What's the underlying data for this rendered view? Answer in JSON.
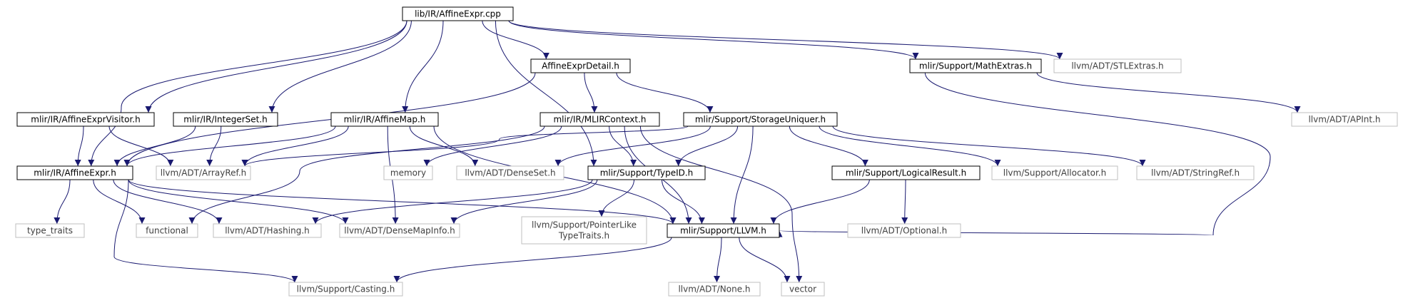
{
  "colors": {
    "edge": "#191970",
    "root_fill": "#bfbfbf",
    "internal_border": "#000000",
    "external_border": "#bfbfbf",
    "external_text": "#404040"
  },
  "nodes": [
    {
      "id": "n0",
      "kind": "root",
      "lines": [
        "lib/IR/AffineExpr.cpp"
      ]
    },
    {
      "id": "n1",
      "kind": "internal",
      "lines": [
        "mlir/IR/AffineExpr.h"
      ]
    },
    {
      "id": "n2",
      "kind": "external",
      "lines": [
        "llvm/ADT/ArrayRef.h"
      ]
    },
    {
      "id": "n3",
      "kind": "external",
      "lines": [
        "llvm/ADT/DenseMapInfo.h"
      ]
    },
    {
      "id": "n4",
      "kind": "internal",
      "lines": [
        "mlir/Support/LLVM.h"
      ]
    },
    {
      "id": "n5",
      "kind": "external",
      "lines": [
        "llvm/ADT/None.h"
      ]
    },
    {
      "id": "n6",
      "kind": "external",
      "lines": [
        "llvm/Support/Casting.h"
      ]
    },
    {
      "id": "n7",
      "kind": "external",
      "lines": [
        "vector"
      ]
    },
    {
      "id": "n8",
      "kind": "external",
      "lines": [
        "functional"
      ]
    },
    {
      "id": "n9",
      "kind": "external",
      "lines": [
        "llvm/ADT/Hashing.h"
      ]
    },
    {
      "id": "n10",
      "kind": "external",
      "lines": [
        "type_traits"
      ]
    },
    {
      "id": "n11",
      "kind": "internal",
      "lines": [
        "AffineExprDetail.h"
      ]
    },
    {
      "id": "n12",
      "kind": "internal",
      "lines": [
        "mlir/IR/MLIRContext.h"
      ]
    },
    {
      "id": "n13",
      "kind": "internal",
      "lines": [
        "mlir/Support/TypeID.h"
      ]
    },
    {
      "id": "n14",
      "kind": "external",
      "lines": [
        "llvm/Support/PointerLike",
        "TypeTraits.h"
      ]
    },
    {
      "id": "n15",
      "kind": "external",
      "lines": [
        "memory"
      ]
    },
    {
      "id": "n16",
      "kind": "internal",
      "lines": [
        "mlir/Support/StorageUniquer.h"
      ]
    },
    {
      "id": "n17",
      "kind": "external",
      "lines": [
        "llvm/ADT/DenseSet.h"
      ]
    },
    {
      "id": "n18",
      "kind": "internal",
      "lines": [
        "mlir/Support/LogicalResult.h"
      ]
    },
    {
      "id": "n19",
      "kind": "external",
      "lines": [
        "llvm/ADT/Optional.h"
      ]
    },
    {
      "id": "n20",
      "kind": "external",
      "lines": [
        "llvm/Support/Allocator.h"
      ]
    },
    {
      "id": "n21",
      "kind": "external",
      "lines": [
        "llvm/ADT/StringRef.h"
      ]
    },
    {
      "id": "n22",
      "kind": "internal",
      "lines": [
        "mlir/IR/AffineExprVisitor.h"
      ]
    },
    {
      "id": "n23",
      "kind": "internal",
      "lines": [
        "mlir/IR/AffineMap.h"
      ]
    },
    {
      "id": "n24",
      "kind": "internal",
      "lines": [
        "mlir/IR/IntegerSet.h"
      ]
    },
    {
      "id": "n25",
      "kind": "internal",
      "lines": [
        "mlir/Support/MathExtras.h"
      ]
    },
    {
      "id": "n26",
      "kind": "external",
      "lines": [
        "llvm/ADT/APInt.h"
      ]
    },
    {
      "id": "n27",
      "kind": "external",
      "lines": [
        "llvm/ADT/STLExtras.h"
      ]
    }
  ],
  "edges": [
    [
      "n0",
      "n1"
    ],
    [
      "n0",
      "n22"
    ],
    [
      "n0",
      "n24"
    ],
    [
      "n0",
      "n23"
    ],
    [
      "n0",
      "n11"
    ],
    [
      "n0",
      "n13"
    ],
    [
      "n0",
      "n25"
    ],
    [
      "n0",
      "n27"
    ],
    [
      "n1",
      "n10"
    ],
    [
      "n1",
      "n8"
    ],
    [
      "n1",
      "n9"
    ],
    [
      "n1",
      "n3"
    ],
    [
      "n1",
      "n6"
    ],
    [
      "n1",
      "n4"
    ],
    [
      "n22",
      "n1"
    ],
    [
      "n22",
      "n2"
    ],
    [
      "n24",
      "n1"
    ],
    [
      "n24",
      "n2"
    ],
    [
      "n23",
      "n1"
    ],
    [
      "n23",
      "n2"
    ],
    [
      "n23",
      "n17"
    ],
    [
      "n23",
      "n3"
    ],
    [
      "n23",
      "n4"
    ],
    [
      "n11",
      "n1"
    ],
    [
      "n11",
      "n12"
    ],
    [
      "n11",
      "n16"
    ],
    [
      "n12",
      "n15"
    ],
    [
      "n12",
      "n8"
    ],
    [
      "n12",
      "n13"
    ],
    [
      "n12",
      "n4"
    ],
    [
      "n12",
      "n7"
    ],
    [
      "n16",
      "n2"
    ],
    [
      "n16",
      "n17"
    ],
    [
      "n16",
      "n13"
    ],
    [
      "n16",
      "n4"
    ],
    [
      "n16",
      "n18"
    ],
    [
      "n16",
      "n20"
    ],
    [
      "n16",
      "n21"
    ],
    [
      "n13",
      "n9"
    ],
    [
      "n13",
      "n3"
    ],
    [
      "n13",
      "n14"
    ],
    [
      "n13",
      "n4"
    ],
    [
      "n18",
      "n4"
    ],
    [
      "n18",
      "n19"
    ],
    [
      "n4",
      "n6"
    ],
    [
      "n4",
      "n5"
    ],
    [
      "n4",
      "n7"
    ],
    [
      "n25",
      "n4"
    ],
    [
      "n25",
      "n26"
    ]
  ]
}
